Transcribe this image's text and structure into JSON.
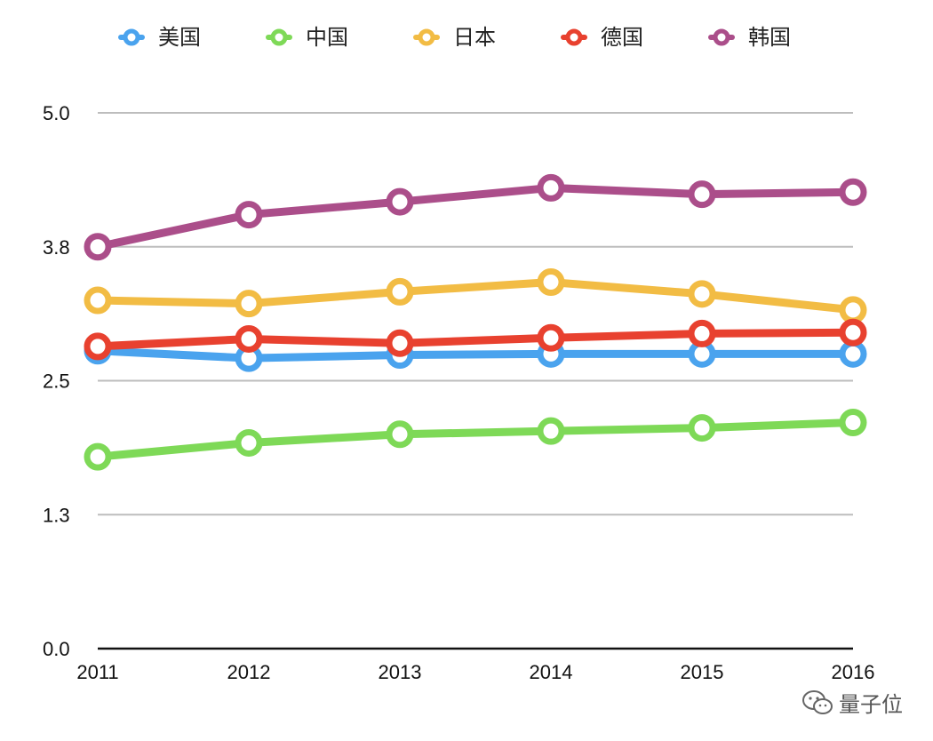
{
  "chart_data": {
    "type": "line",
    "title": "",
    "xlabel": "",
    "ylabel": "",
    "x": [
      "2011",
      "2012",
      "2013",
      "2014",
      "2015",
      "2016"
    ],
    "ylim": [
      0,
      5
    ],
    "yticks": [
      0,
      1.25,
      2.5,
      3.75,
      5
    ],
    "ytick_labels": [
      "0.0",
      "1.3",
      "2.5",
      "3.8",
      "5.0"
    ],
    "grid": true,
    "legend_position": "top",
    "series": [
      {
        "name": "美国",
        "color": "#4aa3ee",
        "values": [
          2.78,
          2.71,
          2.74,
          2.75,
          2.75,
          2.75
        ]
      },
      {
        "name": "中国",
        "color": "#7ed957",
        "values": [
          1.79,
          1.92,
          2.0,
          2.03,
          2.06,
          2.11
        ]
      },
      {
        "name": "日本",
        "color": "#f2bc44",
        "values": [
          3.25,
          3.22,
          3.33,
          3.42,
          3.31,
          3.16
        ]
      },
      {
        "name": "德国",
        "color": "#e8412f",
        "values": [
          2.82,
          2.89,
          2.85,
          2.9,
          2.94,
          2.95
        ]
      },
      {
        "name": "韩国",
        "color": "#ab4e8a",
        "values": [
          3.75,
          4.05,
          4.17,
          4.3,
          4.24,
          4.26
        ]
      }
    ]
  },
  "watermark": {
    "text": "量子位",
    "icon": "wechat-icon"
  }
}
